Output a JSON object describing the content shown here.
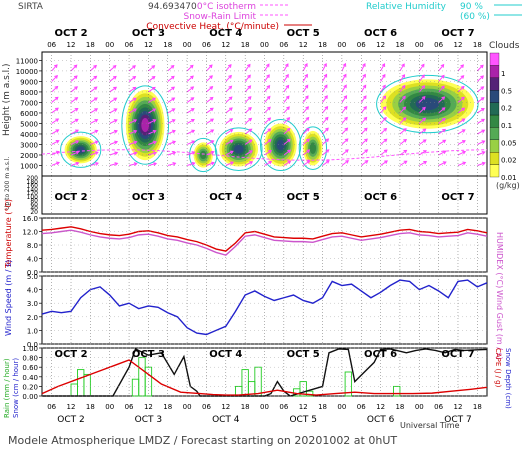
{
  "header": {
    "site": "SIRTA",
    "coord": "94.693470",
    "legend_left": [
      {
        "label": "0°C isotherm",
        "color": "#ff55ff",
        "style": "dashed"
      },
      {
        "label": "Snow-Rain Limit",
        "color": "#ff55ff",
        "style": "dashed"
      },
      {
        "label": "Convective Heat. (°C/minute)",
        "color": "#cc0000",
        "style": "solid"
      }
    ],
    "legend_right": [
      {
        "label": "Relative Humidity",
        "pct": "90 %",
        "color": "#22cccc"
      },
      {
        "label": "",
        "pct": "(60 %)",
        "color": "#22cccc"
      }
    ]
  },
  "time_axis": {
    "day_labels": [
      "OCT  2",
      "OCT  3",
      "OCT  4",
      "OCT  5",
      "OCT  6",
      "OCT  7"
    ],
    "hour_labels": [
      "06",
      "12",
      "18",
      "00"
    ],
    "start_hour": 3,
    "end_hour": 141,
    "xlabel": "Universal Time"
  },
  "clouds_colorbar": {
    "title": "Clouds",
    "ticks": [
      "1",
      "0.5",
      "0.2",
      "0.1",
      "0.05",
      "0.02",
      "0.01"
    ],
    "unit": "(g/kg)",
    "colors": [
      "#ffff55",
      "#dde022",
      "#99d044",
      "#55aa55",
      "#338844",
      "#226a55",
      "#2a4a7a",
      "#552277",
      "#aa22aa",
      "#ff55ff"
    ]
  },
  "footer": "Modele Atmospherique LMDZ / Forecast starting on 20201002 at 0hUT",
  "chart_data": [
    {
      "type": "heatmap",
      "panel": "clouds",
      "ylabel": "Height  (m a.s.l.)",
      "yticks": [
        "11000",
        "10000",
        "9000",
        "8000",
        "7000",
        "6000",
        "5000",
        "4000",
        "3000",
        "2000",
        "1000"
      ],
      "sub_ylabel": "Up to 200 m a.s.l.",
      "sub_yticks": [
        "200",
        "180",
        "160",
        "140",
        "120",
        "100",
        "80",
        "60",
        "40",
        "20"
      ],
      "cells": [
        {
          "t0": 10,
          "t1": 20,
          "h0": 1200,
          "h1": 3800,
          "level": 0.2
        },
        {
          "t0": 29,
          "t1": 41,
          "h0": 1500,
          "h1": 8200,
          "level": 0.5
        },
        {
          "t0": 50,
          "t1": 56,
          "h0": 800,
          "h1": 3200,
          "level": 0.1
        },
        {
          "t0": 58,
          "t1": 70,
          "h0": 900,
          "h1": 4200,
          "level": 0.2
        },
        {
          "t0": 72,
          "t1": 82,
          "h0": 900,
          "h1": 5000,
          "level": 0.2
        },
        {
          "t0": 84,
          "t1": 90,
          "h0": 1000,
          "h1": 4300,
          "level": 0.1
        },
        {
          "t0": 108,
          "t1": 137,
          "h0": 4500,
          "h1": 9200,
          "level": 0.2
        }
      ]
    },
    {
      "type": "line",
      "panel": "temperature",
      "ylabel": "Temperature (°C)",
      "ylabel2": "HUMIDEX (°C)",
      "yticks": [
        "16.0",
        "12.0",
        "8.0",
        "4.0",
        "0.0"
      ],
      "ylim": [
        0,
        16
      ],
      "x": [
        3,
        6,
        9,
        12,
        15,
        18,
        21,
        24,
        27,
        30,
        33,
        36,
        39,
        42,
        45,
        48,
        51,
        54,
        57,
        60,
        63,
        66,
        69,
        72,
        75,
        78,
        81,
        84,
        87,
        90,
        93,
        96,
        99,
        102,
        105,
        108,
        111,
        114,
        117,
        120,
        123,
        126,
        129,
        132,
        135,
        138,
        141
      ],
      "series": [
        {
          "name": "",
          "color": "#dd0000",
          "values": [
            12.4,
            12.6,
            13.0,
            13.4,
            12.8,
            12.0,
            11.4,
            11.0,
            10.8,
            11.2,
            12.0,
            12.2,
            11.6,
            10.8,
            10.4,
            9.6,
            9.0,
            8.0,
            6.8,
            6.2,
            8.6,
            11.6,
            12.0,
            11.2,
            10.4,
            10.2,
            10.0,
            10.0,
            9.8,
            10.6,
            11.4,
            11.6,
            11.0,
            10.4,
            10.8,
            11.2,
            11.8,
            12.4,
            12.6,
            12.0,
            11.8,
            11.4,
            11.6,
            11.8,
            12.6,
            12.2,
            11.6
          ]
        },
        {
          "name": "",
          "color": "#cc55cc",
          "values": [
            11.4,
            11.6,
            12.0,
            12.4,
            11.8,
            11.0,
            10.4,
            10.0,
            9.8,
            10.2,
            11.0,
            11.2,
            10.6,
            9.8,
            9.4,
            8.6,
            8.0,
            7.0,
            5.8,
            5.0,
            7.6,
            10.6,
            11.0,
            10.2,
            9.4,
            9.2,
            9.0,
            9.0,
            8.8,
            9.6,
            10.4,
            10.6,
            10.0,
            9.4,
            9.8,
            10.2,
            10.8,
            11.4,
            11.6,
            11.0,
            10.8,
            10.4,
            10.6,
            10.8,
            11.6,
            11.2,
            10.6
          ]
        }
      ]
    },
    {
      "type": "line",
      "panel": "wind",
      "ylabel": "Wind Speed (m / s)",
      "ylabel2": "Wind Gust (m / s)",
      "yticks": [
        "5.0",
        "4.0",
        "3.0",
        "2.0",
        "1.0",
        "0.0"
      ],
      "ylim": [
        0,
        5
      ],
      "x": [
        3,
        6,
        9,
        12,
        15,
        18,
        21,
        24,
        27,
        30,
        33,
        36,
        39,
        42,
        45,
        48,
        51,
        54,
        57,
        60,
        63,
        66,
        69,
        72,
        75,
        78,
        81,
        84,
        87,
        90,
        93,
        96,
        99,
        102,
        105,
        108,
        111,
        114,
        117,
        120,
        123,
        126,
        129,
        132,
        135,
        138,
        141
      ],
      "series": [
        {
          "name": "",
          "color": "#2222cc",
          "values": [
            2.2,
            2.4,
            2.3,
            2.4,
            3.4,
            4.0,
            4.2,
            3.6,
            2.8,
            3.0,
            2.6,
            2.8,
            2.7,
            2.3,
            2.0,
            1.2,
            0.8,
            0.7,
            1.0,
            1.3,
            2.4,
            3.6,
            3.9,
            3.5,
            3.2,
            3.4,
            3.6,
            3.2,
            3.0,
            3.4,
            4.6,
            4.3,
            4.4,
            3.9,
            3.4,
            3.8,
            4.3,
            4.7,
            4.6,
            4.0,
            4.3,
            3.9,
            3.4,
            4.6,
            4.7,
            4.2,
            4.5
          ]
        }
      ]
    },
    {
      "type": "bar",
      "panel": "precip",
      "ylabel": "Rain (mm / hour)",
      "ylabel_b": "Snow (cm / hour)",
      "ylabel2": "CAPE (J / g)",
      "ylabel2_b": "Snow Depth (cm)",
      "yticks": [
        "1.00",
        "0.80",
        "0.60",
        "0.40",
        "0.20",
        "0.00"
      ],
      "ylim": [
        0,
        1
      ],
      "bars": [
        {
          "t0": 12,
          "t1": 14,
          "v": 0.25
        },
        {
          "t0": 14,
          "t1": 16,
          "v": 0.55
        },
        {
          "t0": 16,
          "t1": 18,
          "v": 0.45
        },
        {
          "t0": 31,
          "t1": 33,
          "v": 0.35
        },
        {
          "t0": 33,
          "t1": 35,
          "v": 0.8
        },
        {
          "t0": 35,
          "t1": 37,
          "v": 0.6
        },
        {
          "t0": 63,
          "t1": 65,
          "v": 0.2
        },
        {
          "t0": 65,
          "t1": 67,
          "v": 0.55
        },
        {
          "t0": 67,
          "t1": 69,
          "v": 0.3
        },
        {
          "t0": 69,
          "t1": 71,
          "v": 0.6
        },
        {
          "t0": 81,
          "t1": 83,
          "v": 0.15
        },
        {
          "t0": 83,
          "t1": 85,
          "v": 0.3
        },
        {
          "t0": 85,
          "t1": 87,
          "v": 0.1
        },
        {
          "t0": 97,
          "t1": 99,
          "v": 0.5
        },
        {
          "t0": 112,
          "t1": 114,
          "v": 0.2
        }
      ],
      "series": [
        {
          "name": "",
          "color": "#111111",
          "x": [
            3,
            15,
            25,
            30,
            32,
            36,
            40,
            44,
            47,
            49,
            51,
            52,
            55,
            57,
            60,
            63,
            66,
            68,
            70,
            72,
            74,
            76,
            78,
            80,
            85,
            90,
            92,
            95,
            98,
            100,
            103,
            106,
            108,
            111,
            113,
            116,
            119,
            122,
            125,
            128,
            131,
            134,
            137,
            141
          ],
          "values": [
            0,
            0,
            0,
            0.6,
            0.98,
            0.85,
            0.9,
            0.45,
            0.82,
            0.2,
            0.1,
            0.0,
            0,
            0,
            0,
            0,
            0,
            0,
            0,
            0,
            0.05,
            0.3,
            0.1,
            0,
            0.1,
            0.2,
            0.9,
            0.98,
            0.97,
            0.3,
            0.5,
            0.7,
            0.97,
            0.98,
            0.95,
            0.9,
            0.95,
            0.98,
            0.95,
            0.9,
            0.97,
            0.95,
            0.96,
            0.97
          ]
        },
        {
          "name": "",
          "color": "#dd0000",
          "x": [
            3,
            8,
            14,
            20,
            26,
            30,
            34,
            40,
            46,
            52,
            56,
            60,
            64,
            70,
            76,
            82,
            88,
            94,
            100,
            106,
            112,
            118,
            124,
            130,
            136,
            141
          ],
          "values": [
            0.05,
            0.2,
            0.35,
            0.5,
            0.65,
            0.75,
            0.55,
            0.25,
            0.08,
            0.05,
            0.03,
            0.02,
            0.02,
            0.05,
            0.12,
            0.05,
            0.02,
            0.05,
            0.08,
            0.05,
            0.05,
            0.05,
            0.06,
            0.1,
            0.14,
            0.18
          ]
        }
      ]
    }
  ]
}
